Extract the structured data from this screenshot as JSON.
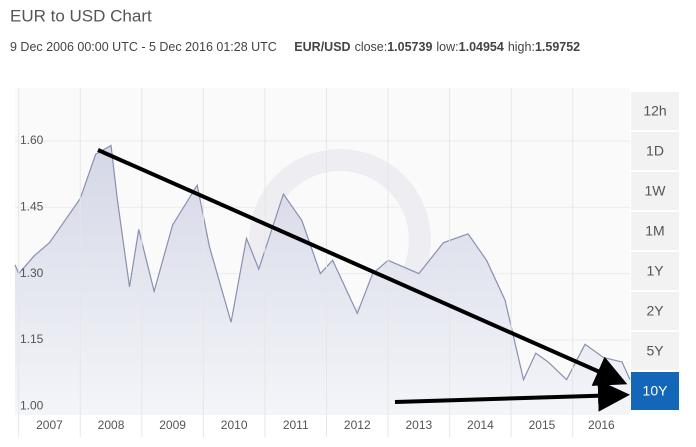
{
  "chart_data": {
    "type": "area",
    "title": "EUR to USD Chart",
    "date_range": "9 Dec 2006 00:00 UTC - 5 Dec 2016 01:28 UTC",
    "pair": "EUR/USD",
    "stats": [
      {
        "label": "close:",
        "value": 1.05739
      },
      {
        "label": "low:",
        "value": 1.04954
      },
      {
        "label": "high:",
        "value": 1.59752
      }
    ],
    "x": [
      2006.94,
      2007.0,
      2007.25,
      2007.5,
      2007.75,
      2008.0,
      2008.25,
      2008.5,
      2008.6,
      2008.8,
      2008.95,
      2009.2,
      2009.5,
      2009.9,
      2010.1,
      2010.45,
      2010.7,
      2010.9,
      2011.3,
      2011.6,
      2011.9,
      2012.1,
      2012.5,
      2012.75,
      2013.0,
      2013.5,
      2013.9,
      2014.3,
      2014.6,
      2014.9,
      2015.2,
      2015.4,
      2015.6,
      2015.9,
      2016.2,
      2016.5,
      2016.8,
      2016.93
    ],
    "values": [
      1.32,
      1.3,
      1.34,
      1.37,
      1.42,
      1.47,
      1.57,
      1.59,
      1.47,
      1.27,
      1.4,
      1.26,
      1.41,
      1.5,
      1.36,
      1.19,
      1.38,
      1.31,
      1.48,
      1.42,
      1.3,
      1.33,
      1.21,
      1.3,
      1.33,
      1.3,
      1.37,
      1.39,
      1.33,
      1.24,
      1.06,
      1.12,
      1.1,
      1.06,
      1.14,
      1.11,
      1.1,
      1.06
    ],
    "color": "#8890b0",
    "xlim": [
      2006.94,
      2016.93
    ],
    "xticks": [
      2007,
      2008,
      2009,
      2010,
      2011,
      2012,
      2013,
      2014,
      2015,
      2016
    ],
    "ylim": [
      0.98,
      1.72
    ],
    "yticks": [
      {
        "value": 1.0,
        "label": "1.00"
      },
      {
        "value": 1.15,
        "label": "1.15"
      },
      {
        "value": 1.3,
        "label": "1.30"
      },
      {
        "value": 1.45,
        "label": "1.45"
      },
      {
        "value": 1.6,
        "label": "1.60"
      }
    ],
    "grid": true,
    "ranges": [
      "12h",
      "1D",
      "1W",
      "1M",
      "1Y",
      "2Y",
      "5Y",
      "10Y"
    ],
    "active_range": "10Y"
  }
}
